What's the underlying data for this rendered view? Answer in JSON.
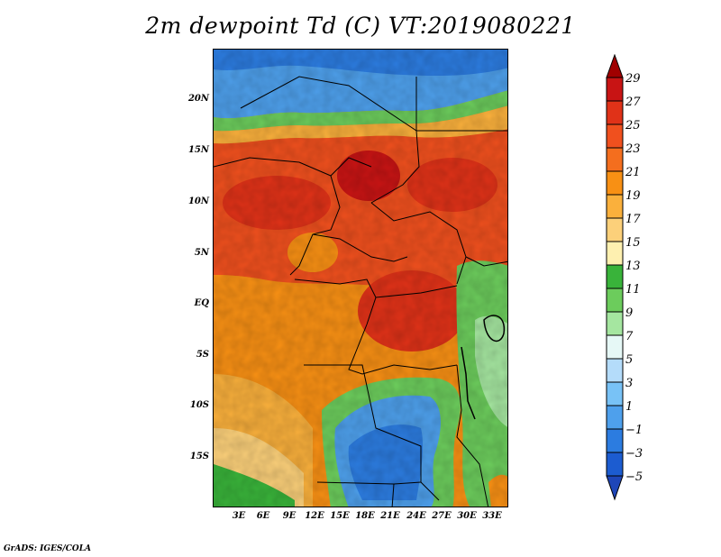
{
  "title": "2m dewpoint Td (C) VT:2019080221",
  "credit": "GrADS: IGES/COLA",
  "lat_labels": [
    "20N",
    "15N",
    "10N",
    "5N",
    "EQ",
    "5S",
    "10S",
    "15S"
  ],
  "lon_labels": [
    "3E",
    "6E",
    "9E",
    "12E",
    "15E",
    "18E",
    "21E",
    "24E",
    "27E",
    "30E",
    "33E"
  ],
  "colorbar": {
    "labels": [
      "29",
      "27",
      "25",
      "23",
      "21",
      "19",
      "17",
      "15",
      "13",
      "11",
      "9",
      "7",
      "5",
      "3",
      "1",
      "−1",
      "−3",
      "−5"
    ],
    "colors": [
      "#a00000",
      "#c81414",
      "#e03218",
      "#f0501e",
      "#f46e1e",
      "#f89014",
      "#fab03c",
      "#fcd07a",
      "#fef0b0",
      "#39b33a",
      "#6ccc5c",
      "#a5e6a0",
      "#e6f8f6",
      "#b4dcfa",
      "#78c2f6",
      "#4ea0ec",
      "#2c7ce0",
      "#1c5cd0",
      "#1e46b8"
    ]
  }
}
